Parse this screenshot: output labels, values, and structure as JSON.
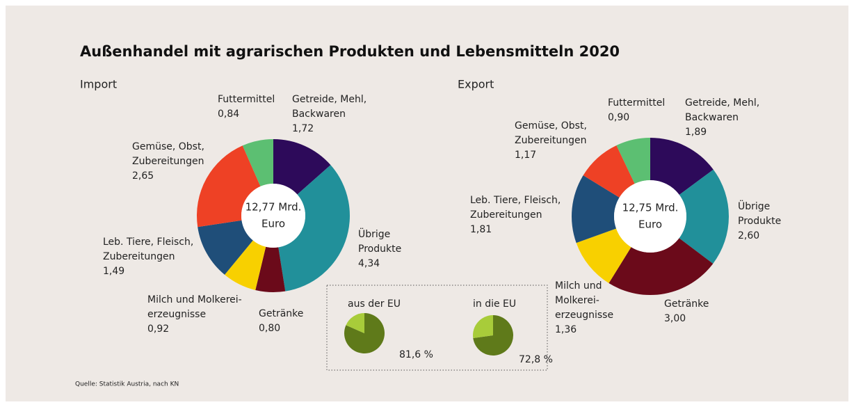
{
  "title": "Außenhandel mit agrarischen Produkten und Lebensmitteln 2020",
  "source": "Quelle: Statistik Austria, nach KN",
  "chart_data": [
    {
      "type": "donut",
      "title": "Import",
      "center_label": [
        "12,77 Mrd.",
        "Euro"
      ],
      "categories": [
        [
          "Getreide, Mehl,",
          "Backwaren"
        ],
        [
          "Übrige",
          "Produkte"
        ],
        [
          "Getränke"
        ],
        [
          "Milch und Molkerei-",
          "erzeugnisse"
        ],
        [
          "Leb. Tiere, Fleisch,",
          "Zubereitungen"
        ],
        [
          "Gemüse, Obst,",
          "Zubereitungen"
        ],
        [
          "Futtermittel"
        ]
      ],
      "values": [
        1.72,
        4.34,
        0.8,
        0.92,
        1.49,
        2.65,
        0.84
      ],
      "value_labels": [
        "1,72",
        "4,34",
        "0,80",
        "0,92",
        "1,49",
        "2,65",
        "0,84"
      ],
      "colors": [
        "#2d0a5a",
        "#21909a",
        "#6b0a1a",
        "#f8d000",
        "#1f4e79",
        "#ee4125",
        "#5cbf72"
      ]
    },
    {
      "type": "donut",
      "title": "Export",
      "center_label": [
        "12,75 Mrd.",
        "Euro"
      ],
      "categories": [
        [
          "Getreide, Mehl,",
          "Backwaren"
        ],
        [
          "Übrige",
          "Produkte"
        ],
        [
          "Getränke"
        ],
        [
          "Milch und",
          "Molkerei-",
          "erzeugnisse"
        ],
        [
          "Leb. Tiere, Fleisch,",
          "Zubereitungen"
        ],
        [
          "Gemüse, Obst,",
          "Zubereitungen"
        ],
        [
          "Futtermittel"
        ]
      ],
      "values": [
        1.89,
        2.6,
        3.0,
        1.36,
        1.81,
        1.17,
        0.9
      ],
      "value_labels": [
        "1,89",
        "2,60",
        "3,00",
        "1,36",
        "1,81",
        "1,17",
        "0,90"
      ],
      "colors": [
        "#2d0a5a",
        "#21909a",
        "#6b0a1a",
        "#f8d000",
        "#1f4e79",
        "#ee4125",
        "#5cbf72"
      ]
    },
    {
      "type": "pie",
      "title": "aus der EU",
      "values": [
        81.6,
        18.4
      ],
      "value_labels": [
        "81,6 %",
        null
      ],
      "colors": [
        "#5f7a1a",
        "#a8cc3a"
      ]
    },
    {
      "type": "pie",
      "title": "in die EU",
      "values": [
        72.8,
        27.2
      ],
      "value_labels": [
        "72,8 %",
        null
      ],
      "colors": [
        "#5f7a1a",
        "#a8cc3a"
      ]
    }
  ]
}
